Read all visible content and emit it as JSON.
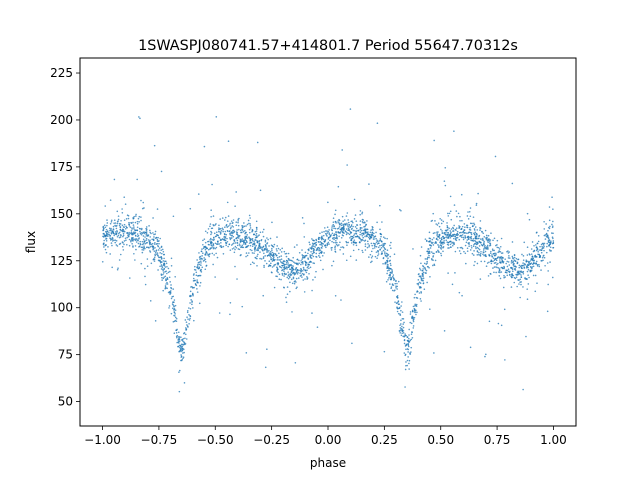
{
  "chart_data": {
    "type": "scatter",
    "title": "1SWASPJ080741.57+414801.7 Period 55647.70312s",
    "xlabel": "phase",
    "ylabel": "flux",
    "xlim": [
      -1.1,
      1.1
    ],
    "ylim": [
      37,
      233
    ],
    "xticks": [
      -1.0,
      -0.75,
      -0.5,
      -0.25,
      0.0,
      0.25,
      0.5,
      0.75,
      1.0
    ],
    "xtick_labels": [
      "−1.00",
      "−0.75",
      "−0.50",
      "−0.25",
      "0.00",
      "0.25",
      "0.50",
      "0.75",
      "1.00"
    ],
    "yticks": [
      50,
      75,
      100,
      125,
      150,
      175,
      200,
      225
    ],
    "ytick_labels": [
      "50",
      "75",
      "100",
      "125",
      "150",
      "175",
      "200",
      "225"
    ],
    "grid": false,
    "point_color": "#1f77b4",
    "series": [
      {
        "x": [
          -1.0,
          -0.95,
          -0.9,
          -0.85,
          -0.8,
          -0.75,
          -0.7,
          -0.67,
          -0.65,
          -0.63,
          -0.6,
          -0.55,
          -0.5,
          -0.45,
          -0.4,
          -0.35,
          -0.3,
          -0.25,
          -0.2,
          -0.15,
          -0.1,
          -0.05,
          0.0,
          0.05,
          0.1,
          0.15,
          0.2,
          0.25,
          0.3,
          0.33,
          0.35,
          0.37,
          0.4,
          0.45,
          0.5,
          0.55,
          0.6,
          0.65,
          0.7,
          0.75,
          0.8,
          0.85,
          0.9,
          0.95,
          1.0
        ],
        "y": [
          137,
          140,
          141,
          140,
          137,
          130,
          110,
          90,
          75,
          88,
          110,
          130,
          137,
          139,
          139,
          137,
          133,
          127,
          122,
          119,
          124,
          132,
          137,
          140,
          141,
          140,
          137,
          130,
          110,
          90,
          75,
          88,
          110,
          130,
          137,
          139,
          139,
          137,
          133,
          127,
          122,
          119,
          124,
          132,
          137
        ]
      }
    ]
  }
}
